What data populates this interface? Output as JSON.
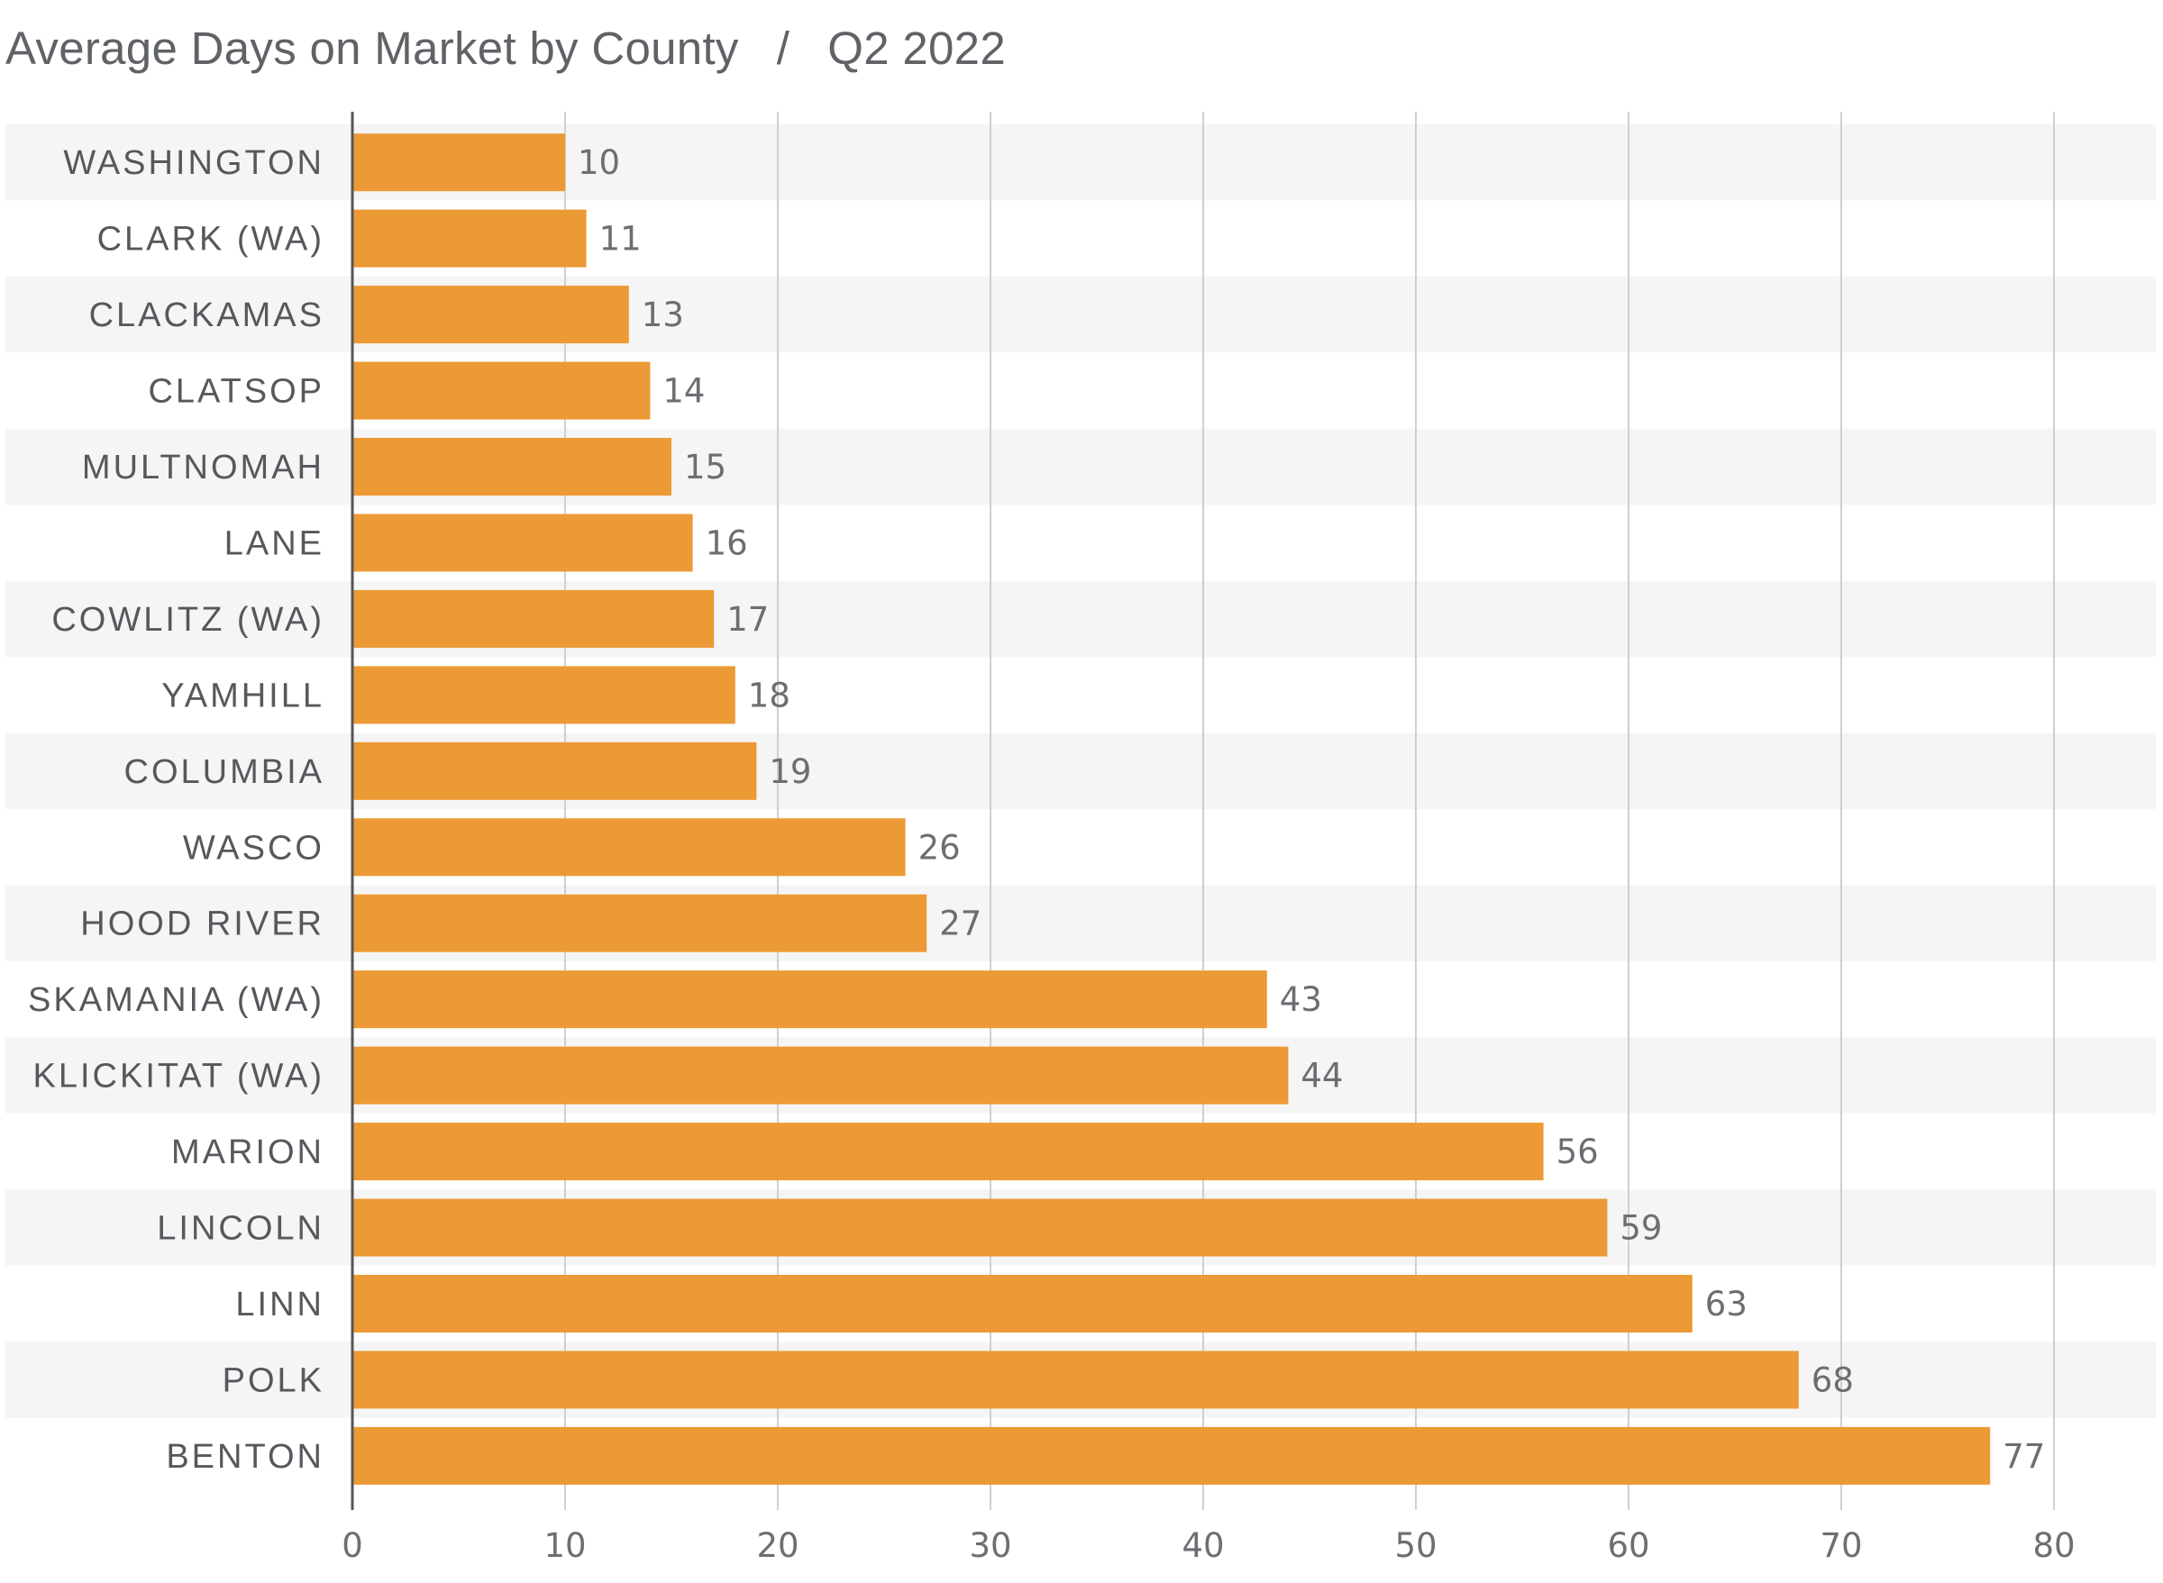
{
  "title": {
    "main": "Average Days on Market by County",
    "separator": "/",
    "period": "Q2 2022"
  },
  "colors": {
    "bar": "#ec9a35",
    "stripe": "#f5f5f5",
    "grid": "#cfcfcf",
    "axis": "#555555"
  },
  "chart_data": {
    "type": "bar",
    "orientation": "horizontal",
    "title": "Average Days on Market by County / Q2 2022",
    "categories": [
      "WASHINGTON",
      "CLARK (WA)",
      "CLACKAMAS",
      "CLATSOP",
      "MULTNOMAH",
      "LANE",
      "COWLITZ (WA)",
      "YAMHILL",
      "COLUMBIA",
      "WASCO",
      "HOOD RIVER",
      "SKAMANIA (WA)",
      "KLICKITAT (WA)",
      "MARION",
      "LINCOLN",
      "LINN",
      "POLK",
      "BENTON"
    ],
    "values": [
      10,
      11,
      13,
      14,
      15,
      16,
      17,
      18,
      19,
      26,
      27,
      43,
      44,
      56,
      59,
      63,
      68,
      77
    ],
    "xlim": [
      0,
      80
    ],
    "xticks": [
      0,
      10,
      20,
      30,
      40,
      50,
      60,
      70,
      80
    ],
    "xlabel": "",
    "ylabel": "",
    "grid": "vertical",
    "data_labels": true
  }
}
